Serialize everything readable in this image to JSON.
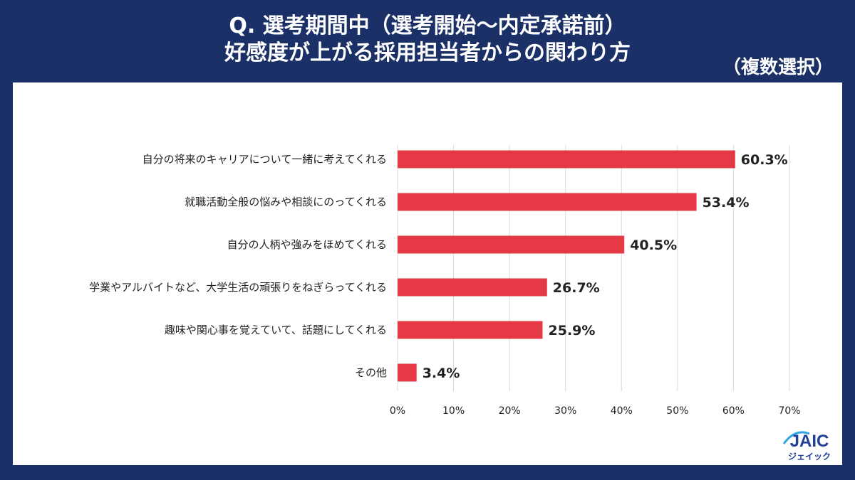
{
  "header": {
    "title_line1": "Q. 選考期間中（選考開始〜内定承諾前）",
    "title_line2": "好感度が上がる採用担当者からの関わり方",
    "note": "（複数選択）"
  },
  "chart_data": {
    "type": "bar",
    "orientation": "horizontal",
    "categories": [
      "自分の将来のキャリアについて一緒に考えてくれる",
      "就職活動全般の悩みや相談にのってくれる",
      "自分の人柄や強みをほめてくれる",
      "学業やアルバイトなど、大学生活の頑張りをねぎらってくれる",
      "趣味や関心事を覚えていて、話題にしてくれる",
      "その他"
    ],
    "values": [
      60.3,
      53.4,
      40.5,
      26.7,
      25.9,
      3.4
    ],
    "value_labels": [
      "60.3%",
      "53.4%",
      "40.5%",
      "26.7%",
      "25.9%",
      "3.4%"
    ],
    "xlim": [
      0,
      70
    ],
    "ticks": [
      0,
      10,
      20,
      30,
      40,
      50,
      60,
      70
    ],
    "tick_labels": [
      "0%",
      "10%",
      "20%",
      "30%",
      "40%",
      "50%",
      "60%",
      "70%"
    ],
    "grid": true,
    "bar_color": "#e63946",
    "grid_color": "#d9d9d9"
  },
  "logo": {
    "mark": "JAIC",
    "kana": "ジェイック",
    "color": "#1f3f9a",
    "accent": "#2ea3e6"
  }
}
